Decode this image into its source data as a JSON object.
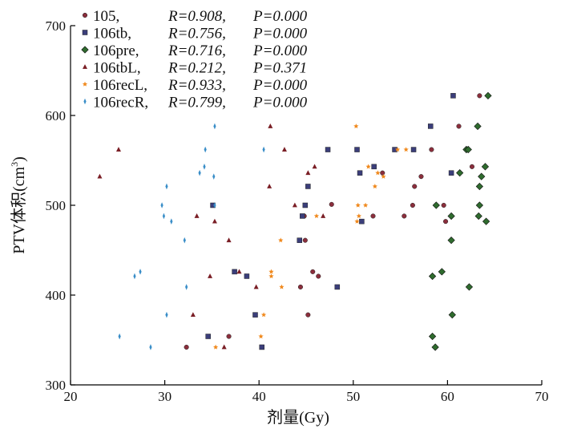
{
  "chart_data": {
    "type": "scatter",
    "xlabel": "剂量(Gy)",
    "ylabel_main": "PTV体积(cm",
    "ylabel_sup": "3",
    "ylabel_end": ")",
    "xlim": [
      20,
      70
    ],
    "ylim": [
      300,
      700
    ],
    "xticks": [
      "20",
      "30",
      "40",
      "50",
      "60",
      "70"
    ],
    "yticks": [
      "300",
      "400",
      "500",
      "600",
      "700"
    ],
    "grid": false,
    "legend_position": "top-left",
    "series": [
      {
        "name": "105,",
        "R": "R=0.908,",
        "P": "P=0.000",
        "marker": "circle",
        "color": "#8b2e3c",
        "points": [
          [
            32.3,
            342
          ],
          [
            36.8,
            354
          ],
          [
            45.2,
            378
          ],
          [
            44.4,
            409
          ],
          [
            45.7,
            426
          ],
          [
            46.3,
            421
          ],
          [
            44.9,
            461
          ],
          [
            44.8,
            488
          ],
          [
            47.7,
            501
          ],
          [
            52.1,
            488
          ],
          [
            53.1,
            536
          ],
          [
            55.4,
            488
          ],
          [
            56.3,
            500
          ],
          [
            56.5,
            521
          ],
          [
            57.2,
            532
          ],
          [
            58.3,
            562
          ],
          [
            59.6,
            500
          ],
          [
            59.8,
            482
          ],
          [
            61.2,
            588
          ],
          [
            62.6,
            543
          ],
          [
            63.4,
            622
          ]
        ]
      },
      {
        "name": "106tb,",
        "R": "R=0.756,",
        "P": "P=0.000",
        "marker": "square",
        "color": "#3b3e7a",
        "points": [
          [
            34.6,
            354
          ],
          [
            35.1,
            500
          ],
          [
            37.4,
            426
          ],
          [
            38.7,
            421
          ],
          [
            39.6,
            378
          ],
          [
            40.3,
            342
          ],
          [
            44.3,
            461
          ],
          [
            44.6,
            488
          ],
          [
            44.9,
            500
          ],
          [
            45.2,
            521
          ],
          [
            47.3,
            562
          ],
          [
            48.3,
            409
          ],
          [
            50.4,
            562
          ],
          [
            50.7,
            536
          ],
          [
            50.9,
            482
          ],
          [
            52.2,
            543
          ],
          [
            54.4,
            562
          ],
          [
            56.4,
            562
          ],
          [
            58.2,
            588
          ],
          [
            60.4,
            536
          ],
          [
            60.6,
            622
          ]
        ]
      },
      {
        "name": "106pre,",
        "R": "R=0.716,",
        "P": "P=0.000",
        "marker": "diamond",
        "color": "#2f6b2e",
        "points": [
          [
            58.4,
            354
          ],
          [
            58.7,
            342
          ],
          [
            58.4,
            421
          ],
          [
            59.4,
            426
          ],
          [
            58.8,
            500
          ],
          [
            60.4,
            488
          ],
          [
            60.4,
            461
          ],
          [
            60.5,
            378
          ],
          [
            61.3,
            536
          ],
          [
            62.0,
            562
          ],
          [
            62.2,
            562
          ],
          [
            62.3,
            409
          ],
          [
            63.2,
            588
          ],
          [
            63.4,
            521
          ],
          [
            63.4,
            500
          ],
          [
            63.3,
            488
          ],
          [
            63.6,
            532
          ],
          [
            64.0,
            543
          ],
          [
            64.1,
            482
          ],
          [
            64.3,
            622
          ]
        ]
      },
      {
        "name": "106tbL,",
        "R": "R=0.212,",
        "P": "P=0.371",
        "marker": "triangle",
        "color": "#7a1e25",
        "points": [
          [
            23.1,
            532
          ],
          [
            25.1,
            562
          ],
          [
            33.0,
            378
          ],
          [
            33.4,
            488
          ],
          [
            35.3,
            482
          ],
          [
            36.3,
            342
          ],
          [
            36.8,
            461
          ],
          [
            34.8,
            421
          ],
          [
            37.9,
            426
          ],
          [
            39.7,
            409
          ],
          [
            41.1,
            521
          ],
          [
            41.2,
            588
          ],
          [
            42.7,
            562
          ],
          [
            43.8,
            500
          ],
          [
            45.2,
            536
          ],
          [
            45.9,
            543
          ],
          [
            46.8,
            488
          ]
        ]
      },
      {
        "name": "106recL,",
        "R": "R=0.933,",
        "P": "P=0.000",
        "marker": "star",
        "color": "#f0891d",
        "points": [
          [
            35.4,
            342
          ],
          [
            40.2,
            354
          ],
          [
            40.5,
            378
          ],
          [
            41.3,
            421
          ],
          [
            41.3,
            426
          ],
          [
            42.4,
            409
          ],
          [
            42.3,
            461
          ],
          [
            46.1,
            488
          ],
          [
            50.3,
            588
          ],
          [
            50.4,
            482
          ],
          [
            50.5,
            500
          ],
          [
            50.6,
            488
          ],
          [
            51.3,
            500
          ],
          [
            51.6,
            543
          ],
          [
            52.3,
            521
          ],
          [
            52.6,
            536
          ],
          [
            53.2,
            532
          ],
          [
            54.7,
            562
          ],
          [
            55.6,
            562
          ]
        ]
      },
      {
        "name": "106recR,",
        "R": "R=0.799,",
        "P": "P=0.000",
        "marker": "thin-diamond",
        "color": "#3a8ec8",
        "points": [
          [
            25.2,
            354
          ],
          [
            26.8,
            421
          ],
          [
            27.4,
            426
          ],
          [
            28.5,
            342
          ],
          [
            29.7,
            500
          ],
          [
            29.9,
            488
          ],
          [
            30.2,
            521
          ],
          [
            30.2,
            378
          ],
          [
            30.7,
            482
          ],
          [
            32.1,
            461
          ],
          [
            32.3,
            409
          ],
          [
            33.7,
            536
          ],
          [
            34.2,
            543
          ],
          [
            34.3,
            562
          ],
          [
            35.2,
            532
          ],
          [
            35.3,
            500
          ],
          [
            35.3,
            588
          ],
          [
            40.5,
            562
          ]
        ]
      }
    ]
  }
}
